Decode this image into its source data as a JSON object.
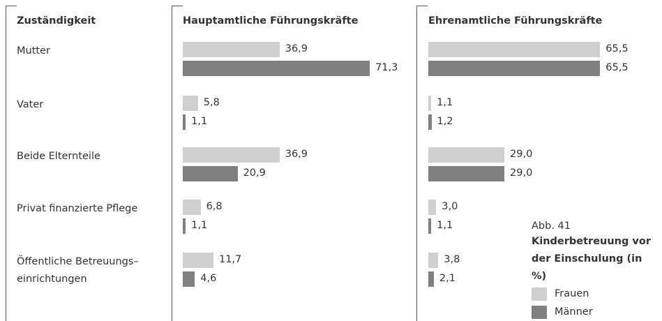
{
  "figure_label": "Abb. 41",
  "caption": "Kinderbetreuung vor der Einschulung (in %)",
  "row_header": "Zuständigkeit",
  "chart_data": [
    {
      "type": "bar",
      "orientation": "horizontal",
      "title": "Hauptamtliche Führungskräfte",
      "categories": [
        "Mutter",
        "Vater",
        "Beide Elternteile",
        "Privat finanzierte Pflege",
        "Öffentliche Betreuungs–\neinrichtungen"
      ],
      "series": [
        {
          "name": "Frauen",
          "color": "#cfcfcf",
          "values": [
            36.9,
            5.8,
            36.9,
            6.8,
            11.7
          ],
          "value_labels": [
            "36,9",
            "5,8",
            "36,9",
            "6,8",
            "11,7"
          ]
        },
        {
          "name": "Männer",
          "color": "#808080",
          "values": [
            71.3,
            1.1,
            20.9,
            1.1,
            4.6
          ],
          "value_labels": [
            "71,3",
            "1,1",
            "20,9",
            "1,1",
            "4,6"
          ]
        }
      ]
    },
    {
      "type": "bar",
      "orientation": "horizontal",
      "title": "Ehrenamtliche Führungskräfte",
      "series": [
        {
          "color": "#cfcfcf",
          "values": [
            65.5,
            1.1,
            29.0,
            3.0,
            3.8
          ],
          "value_labels": [
            "65,5",
            "1,1",
            "29,0",
            "3,0",
            "3,8"
          ]
        },
        {
          "color": "#808080",
          "values": [
            65.5,
            1.2,
            29.0,
            1.1,
            2.1
          ],
          "value_labels": [
            "65,5",
            "1,2",
            "29,0",
            "1,1",
            "2,1"
          ]
        }
      ]
    }
  ]
}
